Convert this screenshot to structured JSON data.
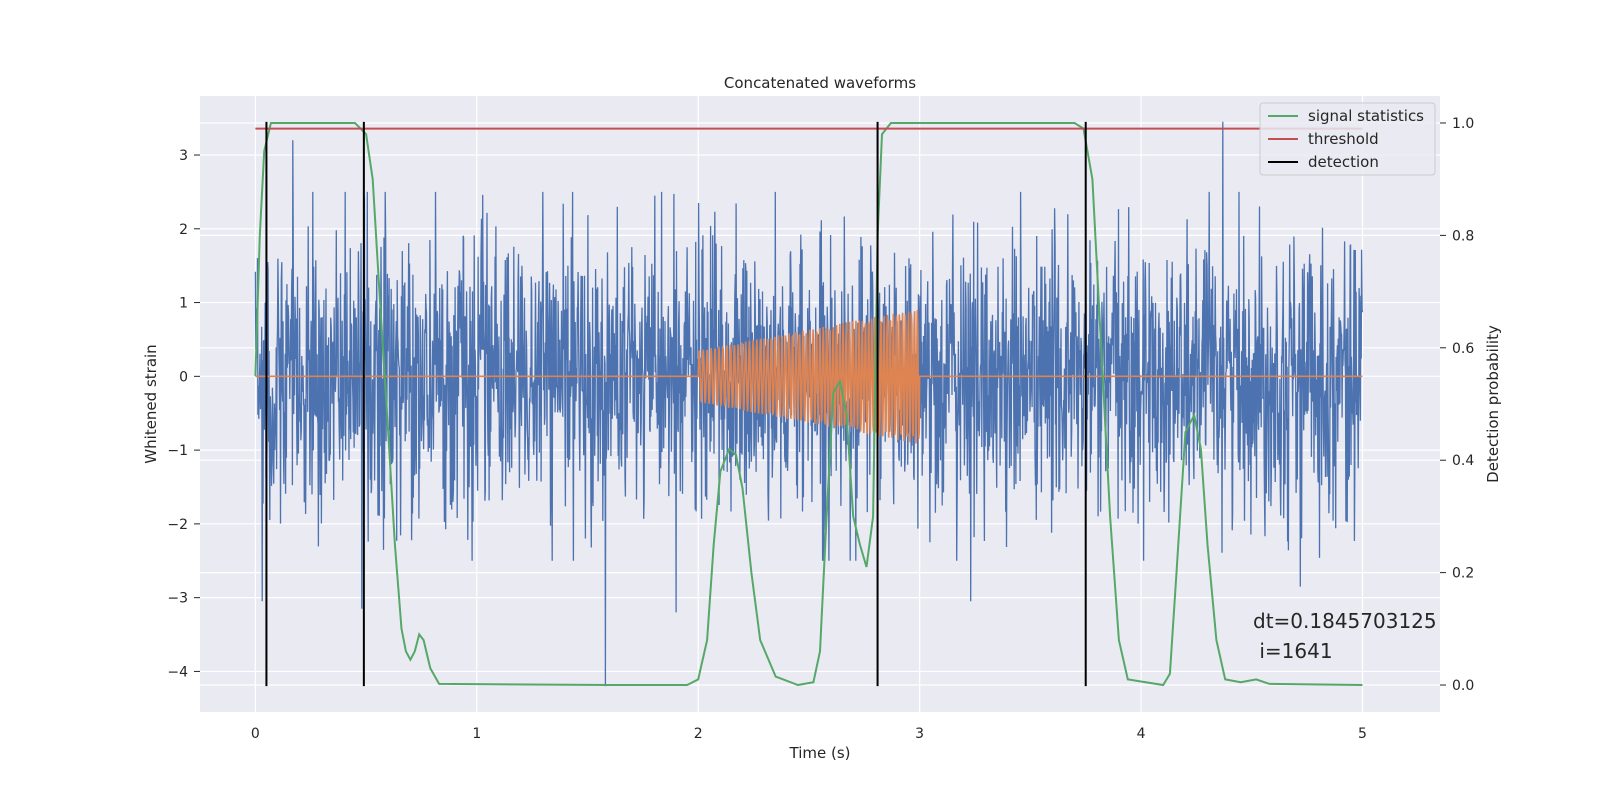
{
  "chart_data": {
    "type": "line",
    "title": "Concatenated waveforms",
    "xlabel": "Time (s)",
    "ylabel": "Whitened strain",
    "y2label": "Detection probability",
    "xlim": [
      -0.25,
      5.35
    ],
    "ylim": [
      -4.55,
      3.8
    ],
    "y2lim": [
      -0.048,
      1.048
    ],
    "x_ticks": [
      0,
      1,
      2,
      3,
      4,
      5
    ],
    "y_ticks": [
      -4,
      -3,
      -2,
      -1,
      0,
      1,
      2,
      3
    ],
    "y2_ticks": [
      0.0,
      0.2,
      0.4,
      0.6,
      0.8,
      1.0
    ],
    "grid": true,
    "legend_position": "top-right",
    "colors": {
      "strain": "#4c72b0",
      "waveform": "#dd8452",
      "signal_statistics": "#55a868",
      "threshold": "#c44e52",
      "detection": "#000000",
      "background": "#eaeaf2"
    },
    "series": [
      {
        "name": "",
        "kind": "whitened-strain-noise",
        "x_range": [
          0,
          5.0
        ],
        "typical_envelope": [
          -1.8,
          1.8
        ],
        "extremes": [
          {
            "x": 0.17,
            "y": 3.2
          },
          {
            "x": 4.37,
            "y": 3.45
          },
          {
            "x": 1.58,
            "y": -4.2
          },
          {
            "x": 0.48,
            "y": -3.15
          },
          {
            "x": 0.03,
            "y": -3.05
          },
          {
            "x": 1.9,
            "y": -3.2
          },
          {
            "x": 3.23,
            "y": -3.05
          },
          {
            "x": 4.72,
            "y": -2.85
          }
        ]
      },
      {
        "name": "",
        "kind": "injected-chirp",
        "x_range": [
          0,
          5.0
        ],
        "chirp_start": 2.0,
        "chirp_end": 3.0,
        "amp_start": 0.35,
        "amp_end": 0.92,
        "freq_start": 55,
        "freq_end": 75
      },
      {
        "name": "signal statistics",
        "axis": "right",
        "points": [
          [
            0.0,
            0.55
          ],
          [
            0.02,
            0.8
          ],
          [
            0.04,
            0.95
          ],
          [
            0.07,
            1.0
          ],
          [
            0.45,
            1.0
          ],
          [
            0.5,
            0.98
          ],
          [
            0.53,
            0.9
          ],
          [
            0.56,
            0.7
          ],
          [
            0.6,
            0.45
          ],
          [
            0.63,
            0.25
          ],
          [
            0.66,
            0.1
          ],
          [
            0.68,
            0.06
          ],
          [
            0.7,
            0.045
          ],
          [
            0.72,
            0.06
          ],
          [
            0.74,
            0.09
          ],
          [
            0.76,
            0.08
          ],
          [
            0.79,
            0.03
          ],
          [
            0.83,
            0.002
          ],
          [
            1.6,
            0.0
          ],
          [
            1.95,
            0.0
          ],
          [
            2.0,
            0.01
          ],
          [
            2.04,
            0.08
          ],
          [
            2.07,
            0.25
          ],
          [
            2.1,
            0.38
          ],
          [
            2.14,
            0.42
          ],
          [
            2.17,
            0.41
          ],
          [
            2.2,
            0.35
          ],
          [
            2.24,
            0.2
          ],
          [
            2.28,
            0.08
          ],
          [
            2.35,
            0.015
          ],
          [
            2.45,
            0.0
          ],
          [
            2.52,
            0.005
          ],
          [
            2.55,
            0.06
          ],
          [
            2.58,
            0.3
          ],
          [
            2.61,
            0.52
          ],
          [
            2.64,
            0.54
          ],
          [
            2.67,
            0.48
          ],
          [
            2.7,
            0.3
          ],
          [
            2.73,
            0.25
          ],
          [
            2.76,
            0.21
          ],
          [
            2.79,
            0.3
          ],
          [
            2.81,
            0.8
          ],
          [
            2.83,
            0.98
          ],
          [
            2.87,
            1.0
          ],
          [
            3.7,
            1.0
          ],
          [
            3.74,
            0.99
          ],
          [
            3.78,
            0.9
          ],
          [
            3.82,
            0.6
          ],
          [
            3.86,
            0.3
          ],
          [
            3.9,
            0.08
          ],
          [
            3.94,
            0.01
          ],
          [
            4.1,
            0.0
          ],
          [
            4.13,
            0.02
          ],
          [
            4.16,
            0.2
          ],
          [
            4.2,
            0.45
          ],
          [
            4.24,
            0.48
          ],
          [
            4.27,
            0.42
          ],
          [
            4.3,
            0.25
          ],
          [
            4.34,
            0.08
          ],
          [
            4.38,
            0.01
          ],
          [
            4.45,
            0.005
          ],
          [
            4.52,
            0.01
          ],
          [
            4.58,
            0.002
          ],
          [
            5.0,
            0.0
          ]
        ]
      },
      {
        "name": "threshold",
        "axis": "right",
        "points": [
          [
            0.0,
            0.99
          ],
          [
            5.0,
            0.99
          ]
        ]
      },
      {
        "name": "detection",
        "axis": "left",
        "kind": "vertical-lines",
        "x": [
          0.05,
          0.49,
          2.81,
          3.75
        ],
        "y_range": [
          -4.2,
          3.45
        ]
      }
    ],
    "annotation": {
      "dt_text": "dt=0.1845703125",
      "i_text": " i=1641"
    },
    "legend": [
      "signal statistics",
      "threshold",
      "detection"
    ]
  }
}
